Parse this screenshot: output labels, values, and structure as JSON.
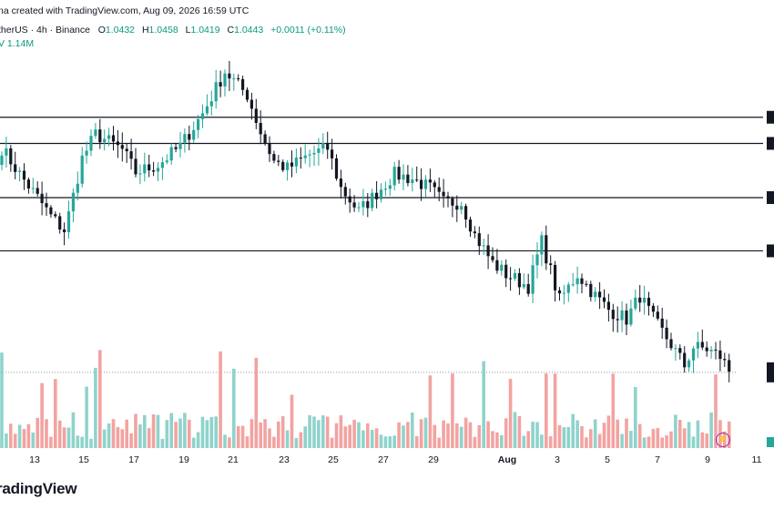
{
  "header": {
    "created_line": "na created with TradingView.com, Aug 09, 2026 16:59 UTC",
    "symbol_line": "therUS · 4h · Binance",
    "ohlc": [
      {
        "k": "O",
        "v": "1.0432"
      },
      {
        "k": "H",
        "v": "1.0458"
      },
      {
        "k": "L",
        "v": "1.0419"
      },
      {
        "k": "C",
        "v": "1.0443"
      }
    ],
    "change": "+0.0011 (+0.11%)",
    "volume": "V  1.14M"
  },
  "brand": {
    "logo_text": "radingView",
    "quick_action_icon": "lightning-icon"
  },
  "colors": {
    "up": "#26a69a",
    "down": "#131722",
    "vol_up": "#8fd3cb",
    "vol_down": "#f2a3a1",
    "level_line": "#131722"
  },
  "chart_data": {
    "type": "candlestick",
    "timeframe": "4h",
    "x_tick_labels": [
      "13",
      "15",
      "17",
      "19",
      "21",
      "23",
      "25",
      "27",
      "29",
      "Aug",
      "3",
      "5",
      "7",
      "9",
      "11"
    ],
    "horizontal_levels": [
      1.0716,
      1.0688,
      1.063,
      1.0573
    ],
    "last_price": 1.0443,
    "ylim": [
      1.0398,
      1.0783
    ],
    "grid": false,
    "close_path": [
      [
        0,
        1.0683
      ],
      [
        4,
        1.0655
      ],
      [
        8,
        1.063
      ],
      [
        11,
        1.061
      ],
      [
        14,
        1.0595
      ],
      [
        15,
        1.0612
      ],
      [
        18,
        1.0672
      ],
      [
        21,
        1.0698
      ],
      [
        24,
        1.069
      ],
      [
        27,
        1.0681
      ],
      [
        30,
        1.0657
      ],
      [
        35,
        1.0665
      ],
      [
        40,
        1.0685
      ],
      [
        45,
        1.072
      ],
      [
        50,
        1.0765
      ],
      [
        53,
        1.075
      ],
      [
        55,
        1.074
      ],
      [
        58,
        1.07
      ],
      [
        61,
        1.0669
      ],
      [
        64,
        1.0661
      ],
      [
        69,
        1.0676
      ],
      [
        73,
        1.0683
      ],
      [
        76,
        1.064
      ],
      [
        80,
        1.0615
      ],
      [
        83,
        1.063
      ],
      [
        88,
        1.0655
      ],
      [
        92,
        1.065
      ],
      [
        96,
        1.064
      ],
      [
        99,
        1.0625
      ],
      [
        103,
        1.0625
      ],
      [
        106,
        1.059
      ],
      [
        110,
        1.056
      ],
      [
        113,
        1.0548
      ],
      [
        118,
        1.0535
      ],
      [
        121,
        1.0583
      ],
      [
        125,
        1.052
      ],
      [
        129,
        1.0548
      ],
      [
        133,
        1.0525
      ],
      [
        136,
        1.051
      ],
      [
        140,
        1.05
      ],
      [
        143,
        1.0525
      ],
      [
        146,
        1.05
      ],
      [
        150,
        1.0473
      ],
      [
        153,
        1.045
      ],
      [
        155,
        1.047
      ],
      [
        158,
        1.0468
      ],
      [
        161,
        1.046
      ],
      [
        163,
        1.0445
      ]
    ],
    "volume_max_label": "1.14M"
  }
}
